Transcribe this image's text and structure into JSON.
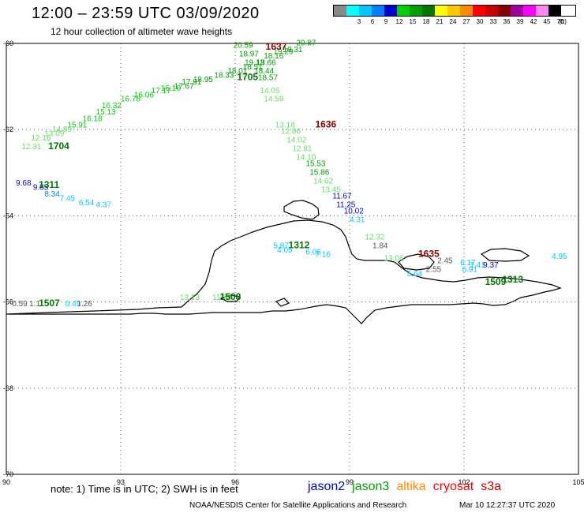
{
  "header": {
    "title": "12:00 – 23:59 UTC 03/09/2020",
    "subtitle": "12 hour collection of altimeter wave heights"
  },
  "legend": {
    "unit": "(ft)",
    "items": [
      {
        "label": "",
        "color": "#888888"
      },
      {
        "label": "3",
        "color": "#00ffff"
      },
      {
        "label": "6",
        "color": "#00c8ff"
      },
      {
        "label": "9",
        "color": "#0080ff"
      },
      {
        "label": "12",
        "color": "#0000d0"
      },
      {
        "label": "15",
        "color": "#00d000"
      },
      {
        "label": "18",
        "color": "#00a000"
      },
      {
        "label": "21",
        "color": "#007800"
      },
      {
        "label": "24",
        "color": "#ffff00"
      },
      {
        "label": "27",
        "color": "#ffc800"
      },
      {
        "label": "30",
        "color": "#ff8c00"
      },
      {
        "label": "33",
        "color": "#ff0000"
      },
      {
        "label": "36",
        "color": "#c80000"
      },
      {
        "label": "39",
        "color": "#8b0000"
      },
      {
        "label": "42",
        "color": "#a000a0"
      },
      {
        "label": "45",
        "color": "#ff00ff"
      },
      {
        "label": "70",
        "color": "#ff88ee"
      },
      {
        "label": "",
        "color": "#000000"
      }
    ]
  },
  "axes": {
    "x_ticks": [
      "90",
      "93",
      "96",
      "99",
      "102",
      "105"
    ],
    "y_ticks": [
      "-60",
      "-62",
      "-64",
      "-66",
      "-68",
      "-70"
    ],
    "lon_range": [
      90,
      105
    ],
    "lat_range": [
      -70,
      -60
    ]
  },
  "satellites": [
    {
      "name": "jason2",
      "color": "#0000d0"
    },
    {
      "name": "jason3",
      "color": "#00a000"
    },
    {
      "name": "altika",
      "color": "#ff8c00"
    },
    {
      "name": "cryosat",
      "color": "#ff0000"
    },
    {
      "name": "s3a",
      "color": "#c80000"
    }
  ],
  "footer": {
    "note": "note:  1) Time is in UTC;  2) SWH is in feet",
    "credit": "NOAA/NESDIS Center for Satellite Applications and Research",
    "timestamp": "Mar 10 12:27:37 UTC 2020"
  },
  "track_labels": [
    {
      "text": "1637",
      "lon": 96.8,
      "lat": -60.15,
      "color": "#8b0000"
    },
    {
      "text": "1636",
      "lon": 98.1,
      "lat": -61.95,
      "color": "#8b0000"
    },
    {
      "text": "1635",
      "lon": 100.8,
      "lat": -64.95,
      "color": "#8b0000"
    },
    {
      "text": "1705",
      "lon": 96.05,
      "lat": -60.85,
      "color": "#007800"
    },
    {
      "text": "1704",
      "lon": 91.1,
      "lat": -62.45,
      "color": "#007800"
    },
    {
      "text": "1311",
      "lon": 90.85,
      "lat": -63.35,
      "color": "#007800"
    },
    {
      "text": "1312",
      "lon": 97.4,
      "lat": -64.75,
      "color": "#007800"
    },
    {
      "text": "1313",
      "lon": 103.0,
      "lat": -65.55,
      "color": "#007800"
    },
    {
      "text": "1507",
      "lon": 90.85,
      "lat": -66.1,
      "color": "#007800"
    },
    {
      "text": "1508",
      "lon": 95.6,
      "lat": -65.95,
      "color": "#007800"
    },
    {
      "text": "1509",
      "lon": 102.55,
      "lat": -65.6,
      "color": "#007800"
    }
  ],
  "swh_points": [
    {
      "text": "20.59",
      "lon": 95.95,
      "lat": -60.1,
      "color": "#00a000"
    },
    {
      "text": "20.87",
      "lon": 97.6,
      "lat": -60.05,
      "color": "#00a000"
    },
    {
      "text": "19.31",
      "lon": 97.25,
      "lat": -60.2,
      "color": "#00a000"
    },
    {
      "text": "19.29",
      "lon": 97.0,
      "lat": -60.25,
      "color": "#00a000"
    },
    {
      "text": "18.97",
      "lon": 96.1,
      "lat": -60.3,
      "color": "#00a000"
    },
    {
      "text": "18.16",
      "lon": 96.75,
      "lat": -60.35,
      "color": "#00a000"
    },
    {
      "text": "19.13",
      "lon": 96.25,
      "lat": -60.5,
      "color": "#00a000"
    },
    {
      "text": "18.66",
      "lon": 96.55,
      "lat": -60.5,
      "color": "#00a000"
    },
    {
      "text": "18.51",
      "lon": 96.2,
      "lat": -60.6,
      "color": "#00a000"
    },
    {
      "text": "18.01",
      "lon": 95.8,
      "lat": -60.7,
      "color": "#00a000"
    },
    {
      "text": "18.44",
      "lon": 96.5,
      "lat": -60.7,
      "color": "#00a000"
    },
    {
      "text": "18.33",
      "lon": 95.45,
      "lat": -60.8,
      "color": "#00a000"
    },
    {
      "text": "18.95",
      "lon": 94.9,
      "lat": -60.9,
      "color": "#00a000"
    },
    {
      "text": "18.57",
      "lon": 96.6,
      "lat": -60.85,
      "color": "#00a000"
    },
    {
      "text": "17.91",
      "lon": 94.6,
      "lat": -60.95,
      "color": "#00a000"
    },
    {
      "text": "17.67",
      "lon": 94.4,
      "lat": -61.05,
      "color": "#00a000"
    },
    {
      "text": "16.16",
      "lon": 94.05,
      "lat": -61.1,
      "color": "#00d000"
    },
    {
      "text": "17.17",
      "lon": 93.8,
      "lat": -61.15,
      "color": "#00d000"
    },
    {
      "text": "16.06",
      "lon": 93.35,
      "lat": -61.25,
      "color": "#00d000"
    },
    {
      "text": "16.78",
      "lon": 93.0,
      "lat": -61.35,
      "color": "#00d000"
    },
    {
      "text": "16.32",
      "lon": 92.5,
      "lat": -61.5,
      "color": "#00d000"
    },
    {
      "text": "15.13",
      "lon": 92.35,
      "lat": -61.65,
      "color": "#00d000"
    },
    {
      "text": "16.18",
      "lon": 92.0,
      "lat": -61.8,
      "color": "#00d000"
    },
    {
      "text": "15.91",
      "lon": 91.6,
      "lat": -61.95,
      "color": "#00d000"
    },
    {
      "text": "14.89",
      "lon": 91.2,
      "lat": -62.05,
      "color": "#66dd66"
    },
    {
      "text": "13.09",
      "lon": 91.0,
      "lat": -62.15,
      "color": "#66dd66"
    },
    {
      "text": "12.16",
      "lon": 90.65,
      "lat": -62.25,
      "color": "#66dd66"
    },
    {
      "text": "12.31",
      "lon": 90.4,
      "lat": -62.45,
      "color": "#66dd66"
    },
    {
      "text": "14.05",
      "lon": 96.65,
      "lat": -61.15,
      "color": "#66dd66"
    },
    {
      "text": "14.59",
      "lon": 96.75,
      "lat": -61.35,
      "color": "#66dd66"
    },
    {
      "text": "13.18",
      "lon": 97.05,
      "lat": -61.95,
      "color": "#66dd66"
    },
    {
      "text": "12.86",
      "lon": 97.2,
      "lat": -62.1,
      "color": "#66dd66"
    },
    {
      "text": "14.02",
      "lon": 97.35,
      "lat": -62.3,
      "color": "#66dd66"
    },
    {
      "text": "12.81",
      "lon": 97.5,
      "lat": -62.5,
      "color": "#66dd66"
    },
    {
      "text": "14.10",
      "lon": 97.6,
      "lat": -62.7,
      "color": "#66dd66"
    },
    {
      "text": "15.53",
      "lon": 97.85,
      "lat": -62.85,
      "color": "#00a000"
    },
    {
      "text": "15.86",
      "lon": 97.95,
      "lat": -63.05,
      "color": "#00a000"
    },
    {
      "text": "14.62",
      "lon": 98.05,
      "lat": -63.25,
      "color": "#66dd66"
    },
    {
      "text": "13.45",
      "lon": 98.25,
      "lat": -63.45,
      "color": "#66dd66"
    },
    {
      "text": "11.67",
      "lon": 98.55,
      "lat": -63.6,
      "color": "#0000d0"
    },
    {
      "text": "11.25",
      "lon": 98.65,
      "lat": -63.8,
      "color": "#0000d0"
    },
    {
      "text": "10.02",
      "lon": 98.85,
      "lat": -63.95,
      "color": "#0000d0"
    },
    {
      "text": "4.31",
      "lon": 99.0,
      "lat": -64.15,
      "color": "#00c8ff"
    },
    {
      "text": "12.32",
      "lon": 99.4,
      "lat": -64.55,
      "color": "#66dd66"
    },
    {
      "text": "1.84",
      "lon": 99.6,
      "lat": -64.75,
      "color": "#555555"
    },
    {
      "text": "2.45",
      "lon": 101.3,
      "lat": -65.1,
      "color": "#555555"
    },
    {
      "text": "13.06",
      "lon": 99.9,
      "lat": -65.05,
      "color": "#66dd66"
    },
    {
      "text": "2.55",
      "lon": 101.0,
      "lat": -65.3,
      "color": "#555555"
    },
    {
      "text": "5.64",
      "lon": 100.5,
      "lat": -65.4,
      "color": "#00c8ff"
    },
    {
      "text": "6.17",
      "lon": 101.9,
      "lat": -65.15,
      "color": "#00c8ff"
    },
    {
      "text": "1.41",
      "lon": 102.15,
      "lat": -65.2,
      "color": "#00c8ff"
    },
    {
      "text": "6.91",
      "lon": 101.95,
      "lat": -65.3,
      "color": "#00c8ff"
    },
    {
      "text": "9.37",
      "lon": 102.5,
      "lat": -65.2,
      "color": "#0000d0"
    },
    {
      "text": "4.95",
      "lon": 104.3,
      "lat": -65.0,
      "color": "#00c8ff"
    },
    {
      "text": "9.68",
      "lon": 90.25,
      "lat": -63.3,
      "color": "#0000d0"
    },
    {
      "text": "9.85",
      "lon": 90.7,
      "lat": -63.4,
      "color": "#0000d0"
    },
    {
      "text": "8.34",
      "lon": 91.0,
      "lat": -63.55,
      "color": "#0080ff"
    },
    {
      "text": "7.45",
      "lon": 91.4,
      "lat": -63.65,
      "color": "#00c8ff"
    },
    {
      "text": "6.54",
      "lon": 91.9,
      "lat": -63.75,
      "color": "#00c8ff"
    },
    {
      "text": "4.37",
      "lon": 92.35,
      "lat": -63.8,
      "color": "#00c8ff"
    },
    {
      "text": "5.87",
      "lon": 97.0,
      "lat": -64.75,
      "color": "#00c8ff"
    },
    {
      "text": "4.05",
      "lon": 97.1,
      "lat": -64.85,
      "color": "#00c8ff"
    },
    {
      "text": "6.06",
      "lon": 97.85,
      "lat": -64.9,
      "color": "#00c8ff"
    },
    {
      "text": "7.16",
      "lon": 98.1,
      "lat": -64.95,
      "color": "#00c8ff"
    },
    {
      "text": "0.59",
      "lon": 90.15,
      "lat": -66.1,
      "color": "#555555"
    },
    {
      "text": "1.1",
      "lon": 90.6,
      "lat": -66.1,
      "color": "#555555"
    },
    {
      "text": "0.49",
      "lon": 91.55,
      "lat": -66.1,
      "color": "#00c8ff"
    },
    {
      "text": "1.26",
      "lon": 91.85,
      "lat": -66.1,
      "color": "#555555"
    },
    {
      "text": "13.13",
      "lon": 94.55,
      "lat": -65.95,
      "color": "#66dd66"
    },
    {
      "text": "11.34",
      "lon": 95.4,
      "lat": -65.95,
      "color": "#66dd66"
    }
  ]
}
